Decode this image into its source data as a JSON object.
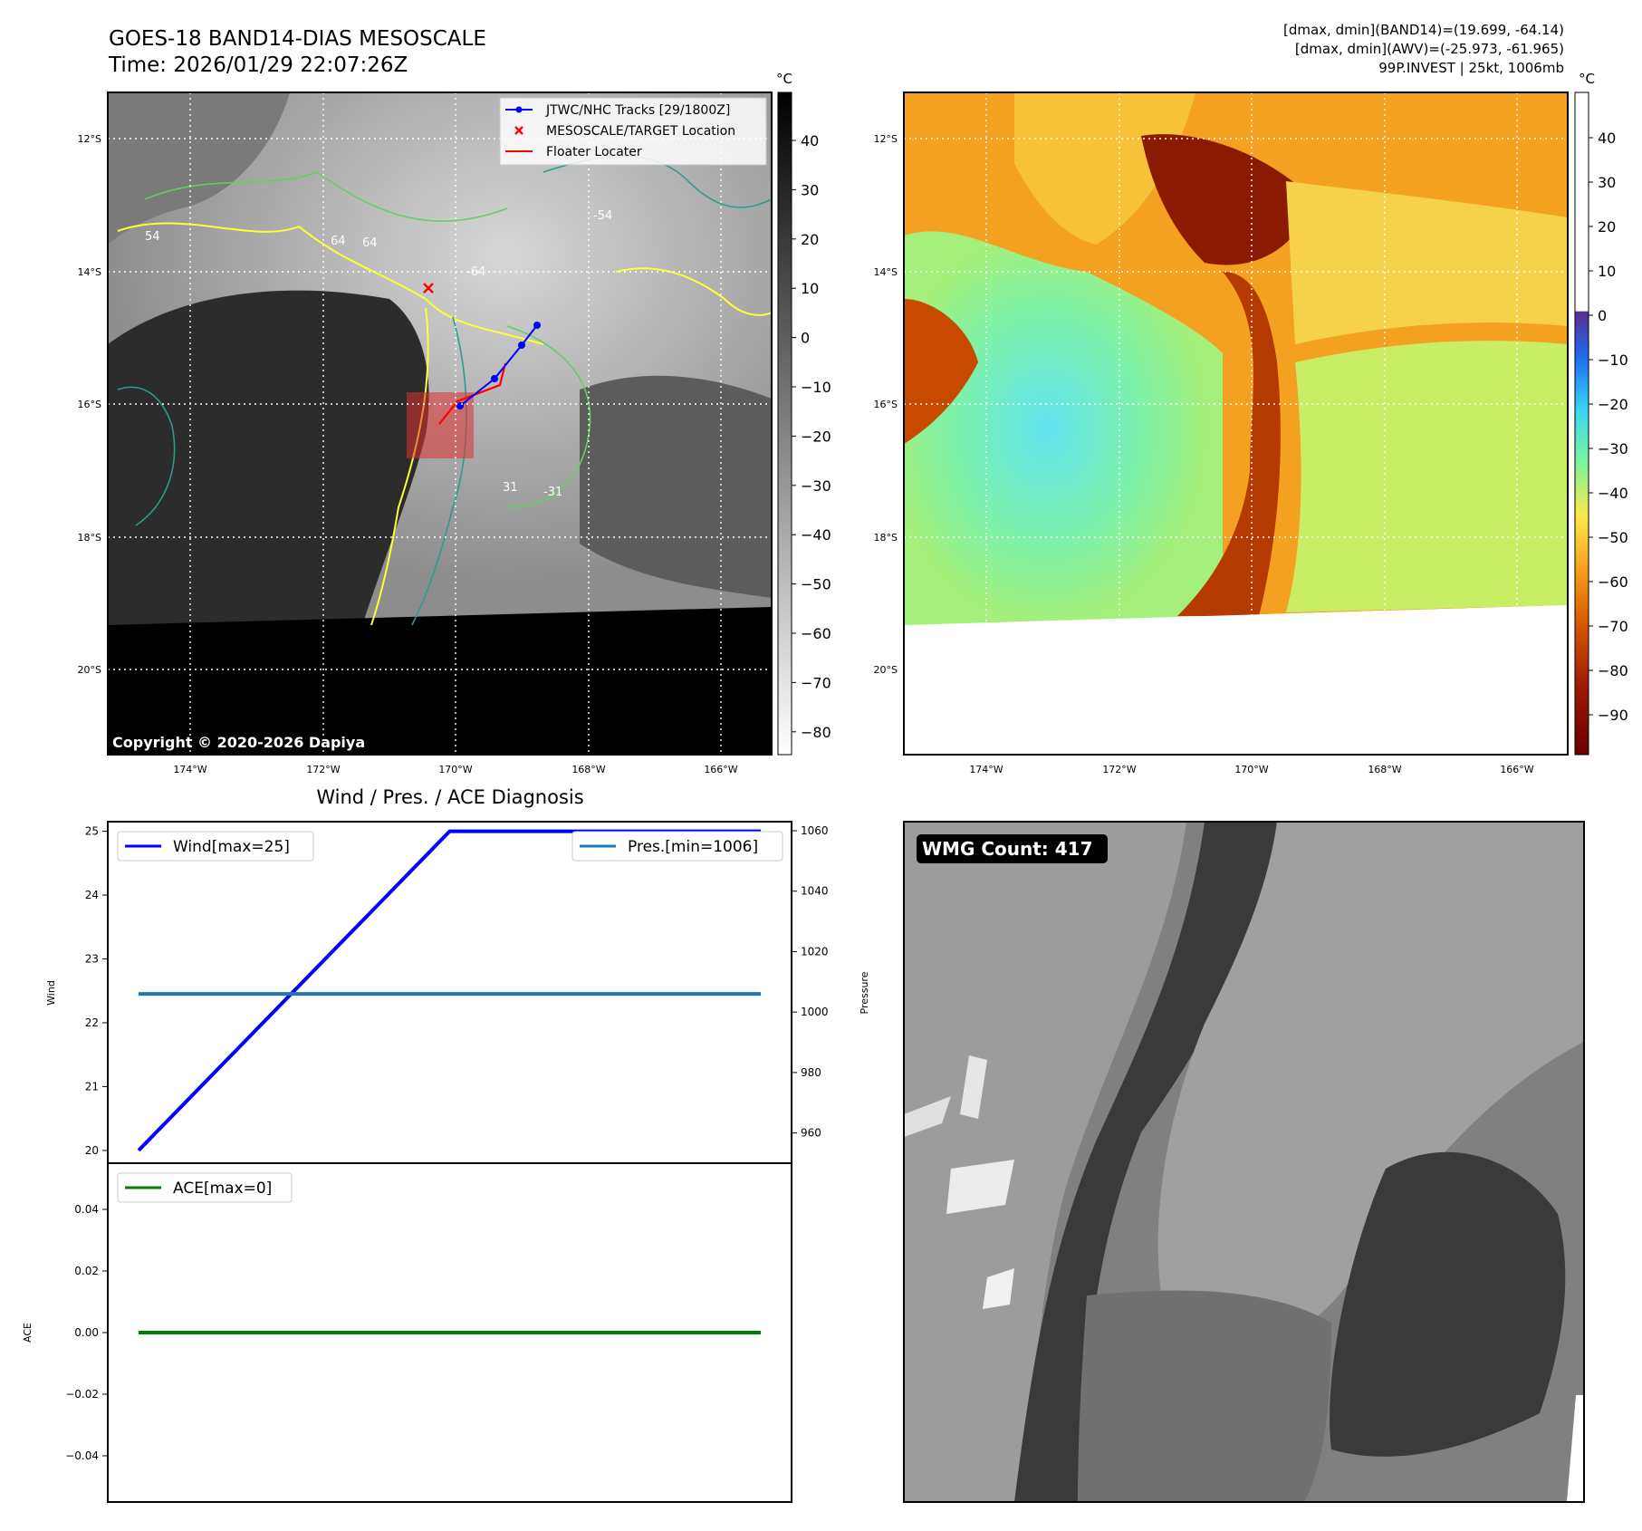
{
  "header": {
    "title": "GOES-18 BAND14-DIAS MESOSCALE",
    "time": "Time: 2026/01/29 22:07:26Z",
    "info_lines": [
      "[dmax, dmin](BAND14)=(19.699, -64.14)",
      "[dmax, dmin](AWV)=(-25.973, -61.965)",
      "99P.INVEST | 25kt, 1006mb"
    ]
  },
  "map_panel": {
    "lat_labels": [
      "12°S",
      "14°S",
      "16°S",
      "18°S",
      "20°S"
    ],
    "lon_labels": [
      "174°W",
      "172°W",
      "170°W",
      "168°W",
      "166°W"
    ],
    "copyright": "Copyright © 2020-2026 Dapiya",
    "legend": [
      {
        "label": "JTWC/NHC Tracks [29/1800Z]",
        "color": "#0000ff",
        "icon": "line-dot-marker"
      },
      {
        "label": "MESOSCALE/TARGET Location",
        "color": "#ff0000",
        "icon": "x-marker"
      },
      {
        "label": "Floater Locater",
        "color": "#ff0000",
        "icon": "line"
      }
    ],
    "contour_labels": [
      "64",
      "64",
      "54",
      "-54",
      "-64",
      "31",
      "-31"
    ],
    "colorbar_unit": "°C",
    "colorbar_ticks": [
      "40",
      "30",
      "20",
      "10",
      "0",
      "−10",
      "−20",
      "−30",
      "−40",
      "−50",
      "−60",
      "−70",
      "−80"
    ]
  },
  "awv_panel": {
    "lat_labels": [
      "12°S",
      "14°S",
      "16°S",
      "18°S",
      "20°S"
    ],
    "lon_labels": [
      "174°W",
      "172°W",
      "170°W",
      "168°W",
      "166°W"
    ],
    "colorbar_unit": "°C",
    "colorbar_ticks": [
      "40",
      "30",
      "20",
      "10",
      "0",
      "−10",
      "−20",
      "−30",
      "−40",
      "−50",
      "−60",
      "−70",
      "−80",
      "−90"
    ]
  },
  "wmg_panel": {
    "label": "WMG Count: 417"
  },
  "chart_data": [
    {
      "type": "line",
      "title": "Wind / Pres. / ACE Diagnosis",
      "ylabel": "Wind",
      "ylabel_right": "Pressure",
      "x": [
        0,
        1,
        2
      ],
      "ylim": [
        19.8,
        25.15
      ],
      "ylim_right": [
        950,
        1063
      ],
      "yticks": [
        20,
        21,
        22,
        23,
        24,
        25
      ],
      "yticks_right": [
        960,
        980,
        1000,
        1020,
        1040,
        1060
      ],
      "series": [
        {
          "name": "Wind[max=25]",
          "axis": "left",
          "color": "#0000ff",
          "values": [
            20,
            25,
            25
          ]
        },
        {
          "name": "Pres.[min=1006]",
          "axis": "right",
          "color": "#1f77b4",
          "values": [
            1006,
            1006,
            1006
          ]
        }
      ]
    },
    {
      "type": "line",
      "ylabel": "ACE",
      "x": [
        0,
        1,
        2
      ],
      "ylim": [
        -0.055,
        0.055
      ],
      "yticks": [
        0.04,
        0.02,
        0.0,
        -0.02,
        -0.04
      ],
      "ytick_labels": [
        "0.04",
        "0.02",
        "0.00",
        "−0.02",
        "−0.04"
      ],
      "series": [
        {
          "name": "ACE[max=0]",
          "color": "#008000",
          "values": [
            0,
            0,
            0
          ]
        }
      ]
    }
  ]
}
